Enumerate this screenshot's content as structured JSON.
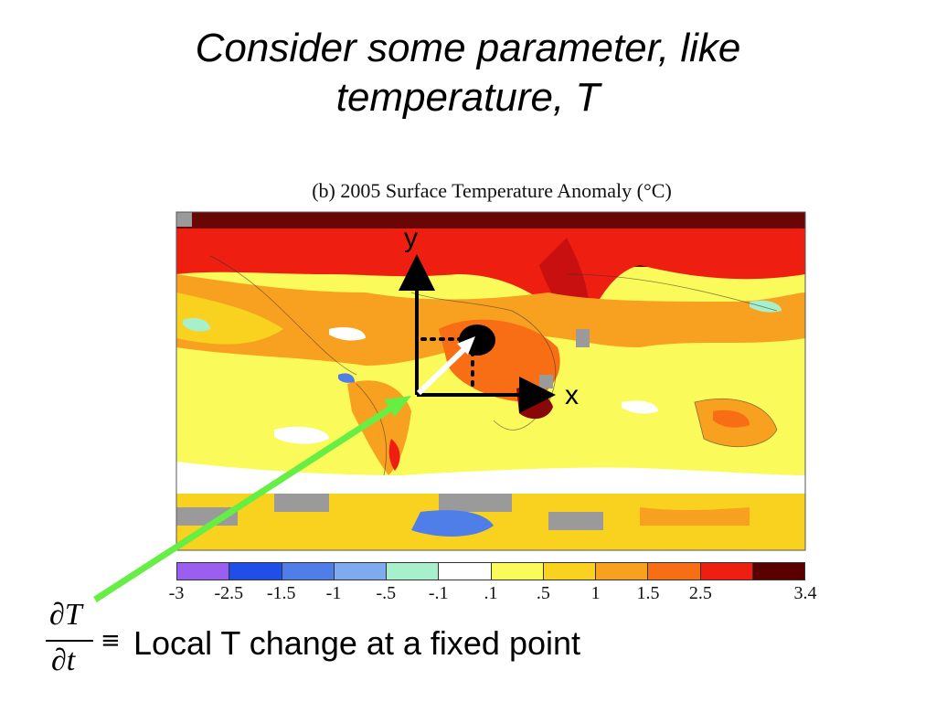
{
  "slide": {
    "title_line1": "Consider some parameter, like",
    "title_line2": "temperature, T"
  },
  "figure": {
    "caption": "(b) 2005 Surface Temperature Anomaly (°C)",
    "axis_x_label": "x",
    "axis_y_label": "y"
  },
  "colorbar": {
    "tick_labels": [
      "-3",
      "-2.5",
      "-1.5",
      "-1",
      "-.5",
      "-.1",
      ".1",
      ".5",
      "1",
      "1.5",
      "2.5",
      "3.4"
    ],
    "colors": [
      "#9b5ff0",
      "#1f4fe8",
      "#4f7ee8",
      "#7faaf0",
      "#a8f0cc",
      "#ffffff",
      "#fafa5a",
      "#f8d21e",
      "#f8a020",
      "#f86e14",
      "#ee1e10",
      "#5a0000"
    ]
  },
  "equation": {
    "numerator": "∂T",
    "denominator": "∂t",
    "equiv_symbol": "≡",
    "description": "Local T change at a fixed point"
  },
  "colors": {
    "arrow_green": "#66ee44",
    "vector_white": "#ffffff",
    "axes_black": "#000000"
  }
}
